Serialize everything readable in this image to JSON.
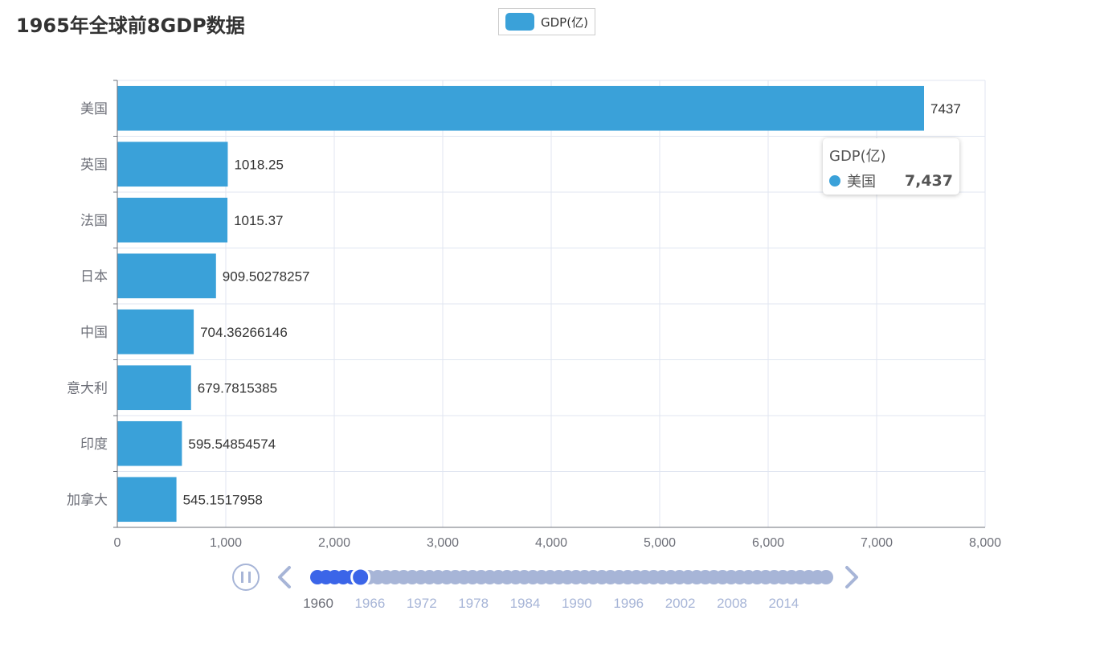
{
  "title": "1965年全球前8GDP数据",
  "legend": {
    "label": "GDP(亿)",
    "color": "#3aa1d9"
  },
  "tooltip": {
    "series": "GDP(亿)",
    "category": "美国",
    "value": "7,437"
  },
  "timeline": {
    "years": [
      "1960",
      "1966",
      "1972",
      "1978",
      "1984",
      "1990",
      "1996",
      "2002",
      "2008",
      "2014"
    ],
    "current_index": 5,
    "total_points": 60,
    "current_year": "1965",
    "control_icons": [
      "pause-icon",
      "chevron-left-icon",
      "chevron-right-icon"
    ],
    "active_color": "#3b65e8",
    "inactive_color": "#a7b5d7"
  },
  "chart_data": {
    "type": "bar",
    "orientation": "horizontal",
    "title": "1965年全球前8GDP数据",
    "categories": [
      "美国",
      "英国",
      "法国",
      "日本",
      "中国",
      "意大利",
      "印度",
      "加拿大"
    ],
    "series": [
      {
        "name": "GDP(亿)",
        "values": [
          7437,
          1018.25,
          1015.37,
          909.50278257,
          704.36266146,
          679.7815385,
          595.54854574,
          545.1517958
        ],
        "labels": [
          "7437",
          "1018.25",
          "1015.37",
          "909.50278257",
          "704.36266146",
          "679.7815385",
          "595.54854574",
          "545.1517958"
        ]
      }
    ],
    "xlim": [
      0,
      8000
    ],
    "xticks": [
      "0",
      "1,000",
      "2,000",
      "3,000",
      "4,000",
      "5,000",
      "6,000",
      "7,000",
      "8,000"
    ],
    "grid": true,
    "legend_position": "top-center",
    "bar_color": "#3aa1d9"
  }
}
